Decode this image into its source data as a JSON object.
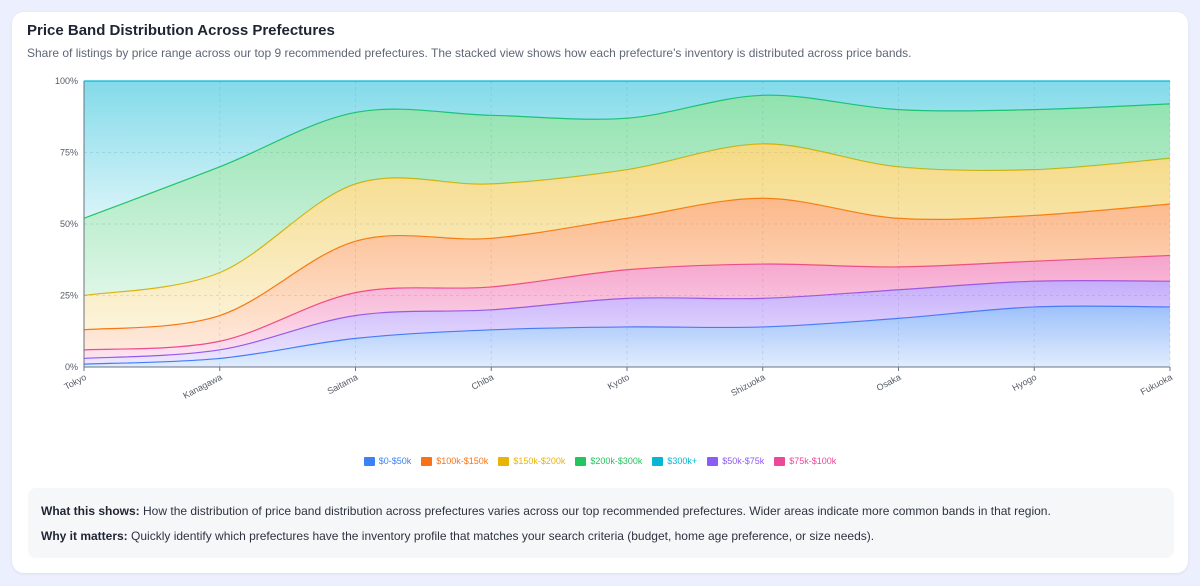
{
  "title": "Price Band Distribution Across Prefectures",
  "subtitle": "Share of listings by price range across our top 9 recommended prefectures. The stacked view shows how each prefecture's inventory is distributed across price bands.",
  "info": {
    "what_label": "What this shows:",
    "what_text": "How the distribution of price band distribution across prefectures varies across our top recommended prefectures. Wider areas indicate more common bands in that region.",
    "why_label": "Why it matters:",
    "why_text": "Quickly identify which prefectures have the inventory profile that matches your search criteria (budget, home age preference, or size needs)."
  },
  "legend": [
    {
      "label": "$0-$50k",
      "color": "#3b82f6"
    },
    {
      "label": "$100k-$150k",
      "color": "#f97316"
    },
    {
      "label": "$150k-$200k",
      "color": "#eab308"
    },
    {
      "label": "$200k-$300k",
      "color": "#22c55e"
    },
    {
      "label": "$300k+",
      "color": "#06b6d4"
    },
    {
      "label": "$50k-$75k",
      "color": "#8b5cf6"
    },
    {
      "label": "$75k-$100k",
      "color": "#ec4899"
    }
  ],
  "chart_data": {
    "type": "area",
    "stacked": true,
    "normalized": true,
    "categories": [
      "Tokyo",
      "Kanagawa",
      "Saitama",
      "Chiba",
      "Kyoto",
      "Shizuoka",
      "Osaka",
      "Hyogo",
      "Fukuoka"
    ],
    "ylim": [
      0,
      100
    ],
    "yticks": [
      "0%",
      "25%",
      "50%",
      "75%",
      "100%"
    ],
    "grid": true,
    "legend_position": "bottom",
    "series": [
      {
        "name": "$0-$50k",
        "color": "#3b82f6",
        "values": [
          1,
          3,
          10,
          13,
          14,
          14,
          17,
          21,
          21
        ]
      },
      {
        "name": "$50k-$75k",
        "color": "#8b5cf6",
        "values": [
          2,
          3,
          8,
          7,
          10,
          10,
          10,
          9,
          9
        ]
      },
      {
        "name": "$75k-$100k",
        "color": "#ec4899",
        "values": [
          3,
          3,
          8,
          8,
          10,
          12,
          8,
          7,
          9
        ]
      },
      {
        "name": "$100k-$150k",
        "color": "#f97316",
        "values": [
          7,
          9,
          18,
          17,
          18,
          23,
          17,
          16,
          18
        ]
      },
      {
        "name": "$150k-$200k",
        "color": "#eab308",
        "values": [
          12,
          15,
          20,
          19,
          17,
          19,
          18,
          16,
          16
        ]
      },
      {
        "name": "$200k-$300k",
        "color": "#22c55e",
        "values": [
          27,
          37,
          25,
          24,
          18,
          17,
          20,
          21,
          19
        ]
      },
      {
        "name": "$300k+",
        "color": "#06b6d4",
        "values": [
          48,
          30,
          11,
          12,
          13,
          5,
          10,
          10,
          8
        ]
      }
    ]
  }
}
